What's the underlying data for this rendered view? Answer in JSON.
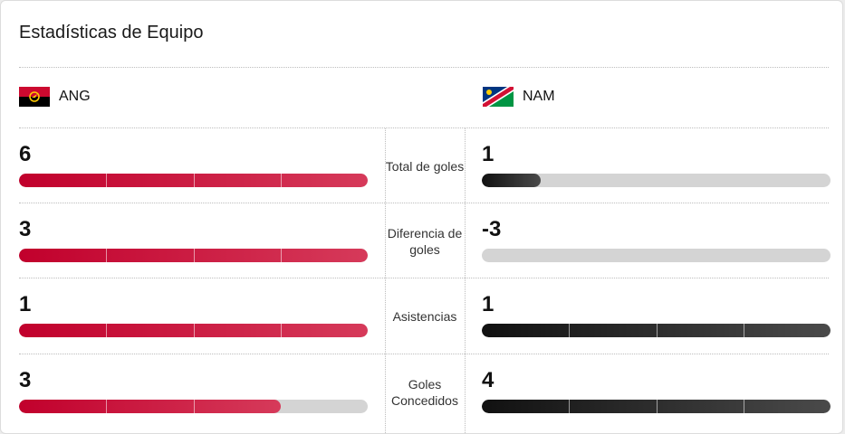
{
  "title": "Estadísticas de Equipo",
  "teams": {
    "home": {
      "code": "ANG",
      "flag_icon": "angola-flag-icon"
    },
    "away": {
      "code": "NAM",
      "flag_icon": "namibia-flag-icon"
    }
  },
  "colors": {
    "home_bar": "#c1002c",
    "away_bar": "#1a1a1a",
    "empty_bar": "#d4d4d4"
  },
  "stats": [
    {
      "label": "Total de goles",
      "home": "6",
      "away": "1",
      "home_fill": 1.0,
      "away_fill": 0.17
    },
    {
      "label": "Diferencia de goles",
      "home": "3",
      "away": "-3",
      "home_fill": 1.0,
      "away_fill": 0.0
    },
    {
      "label": "Asistencias",
      "home": "1",
      "away": "1",
      "home_fill": 1.0,
      "away_fill": 1.0
    },
    {
      "label": "Goles Concedidos",
      "home": "3",
      "away": "4",
      "home_fill": 0.75,
      "away_fill": 1.0
    }
  ]
}
